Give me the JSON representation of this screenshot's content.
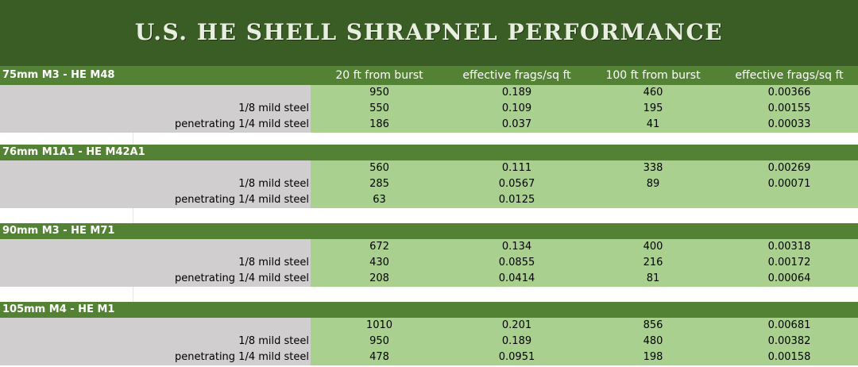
{
  "title": "U.S. HE SHELL SHRAPNEL PERFORMANCE",
  "columns": [
    "20 ft from burst",
    "effective frags/sq ft",
    "100 ft from burst",
    "effective frags/sq ft"
  ],
  "row_labels": [
    "",
    "1/8 mild steel",
    "penetrating 1/4 mild steel"
  ],
  "colors": {
    "title_bg": "#3a5d25",
    "header_bg": "#548235",
    "label_bg": "#d0cece",
    "cell_bg": "#a9d08e"
  },
  "groups": [
    {
      "name": "75mm M3 - HE M48",
      "rows": [
        [
          "950",
          "0.189",
          "460",
          "0.00366"
        ],
        [
          "550",
          "0.109",
          "195",
          "0.00155"
        ],
        [
          "186",
          "0.037",
          "41",
          "0.00033"
        ]
      ]
    },
    {
      "name": "76mm M1A1 - HE M42A1",
      "rows": [
        [
          "560",
          "0.111",
          "338",
          "0.00269"
        ],
        [
          "285",
          "0.0567",
          "89",
          "0.00071"
        ],
        [
          "63",
          "0.0125",
          "",
          ""
        ]
      ]
    },
    {
      "name": "90mm M3 - HE M71",
      "rows": [
        [
          "672",
          "0.134",
          "400",
          "0.00318"
        ],
        [
          "430",
          "0.0855",
          "216",
          "0.00172"
        ],
        [
          "208",
          "0.0414",
          "81",
          "0.00064"
        ]
      ]
    },
    {
      "name": "105mm M4 - HE M1",
      "rows": [
        [
          "1010",
          "0.201",
          "856",
          "0.00681"
        ],
        [
          "950",
          "0.189",
          "480",
          "0.00382"
        ],
        [
          "478",
          "0.0951",
          "198",
          "0.00158"
        ]
      ]
    }
  ]
}
